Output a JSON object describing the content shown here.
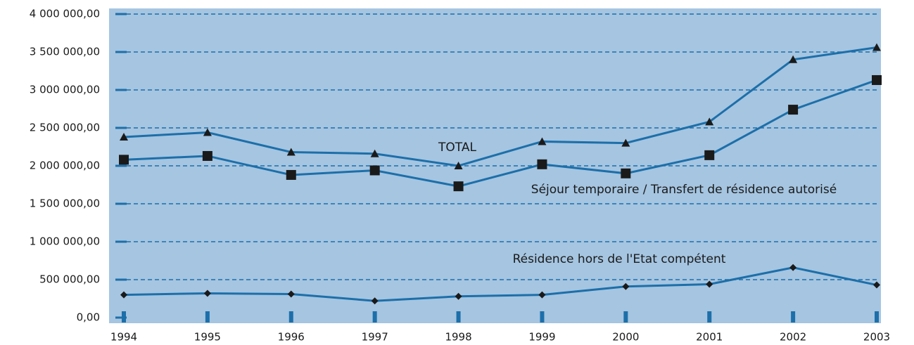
{
  "chart_data": {
    "type": "line",
    "x": [
      "1994",
      "1995",
      "1996",
      "1997",
      "1998",
      "1999",
      "2000",
      "2001",
      "2002",
      "2003"
    ],
    "series": [
      {
        "name": "TOTAL",
        "color": "#1d6fa9",
        "marker": "triangle",
        "values": [
          2380000,
          2440000,
          2180000,
          2160000,
          2000000,
          2320000,
          2300000,
          2580000,
          3400000,
          3560000
        ]
      },
      {
        "name": "Séjour temporaire / Transfert de résidence autorisé",
        "color": "#1d6fa9",
        "marker": "square",
        "values": [
          2080000,
          2130000,
          1880000,
          1940000,
          1730000,
          2020000,
          1900000,
          2140000,
          2740000,
          3130000
        ]
      },
      {
        "name": "Résidence hors de l'Etat compétent",
        "color": "#1d6fa9",
        "marker": "diamond",
        "values": [
          300000,
          320000,
          310000,
          220000,
          280000,
          300000,
          410000,
          440000,
          660000,
          430000
        ]
      }
    ],
    "ylim": [
      0,
      4000000
    ],
    "yticks": [
      {
        "value": 0,
        "label": "0,00"
      },
      {
        "value": 500000,
        "label": "500 000,00"
      },
      {
        "value": 1000000,
        "label": "1 000 000,00"
      },
      {
        "value": 1500000,
        "label": "1 500 000,00"
      },
      {
        "value": 2000000,
        "label": "2 000 000,00"
      },
      {
        "value": 2500000,
        "label": "2 500 000,00"
      },
      {
        "value": 3000000,
        "label": "3 000 000,00"
      },
      {
        "value": 3500000,
        "label": "3 500 000,00"
      },
      {
        "value": 4000000,
        "label": "4 000 000,00"
      }
    ],
    "grid": true,
    "background": "#a5c5e1"
  }
}
